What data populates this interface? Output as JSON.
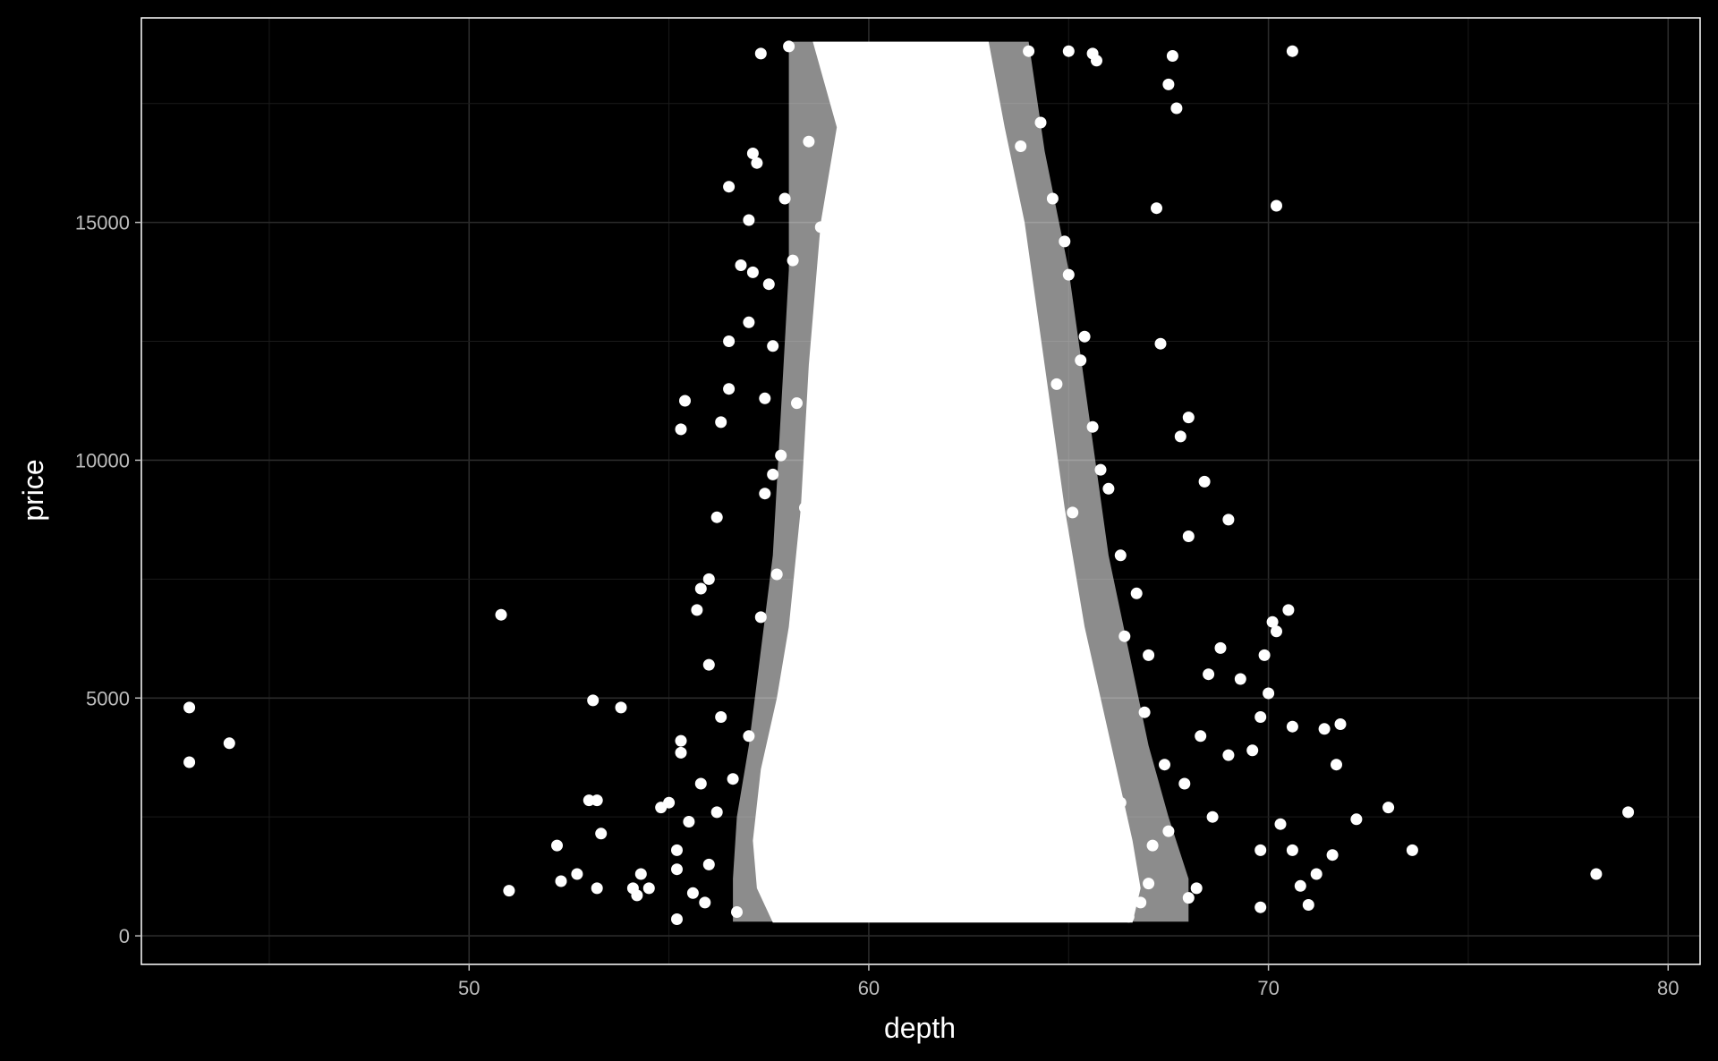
{
  "chart_data": {
    "type": "scatter",
    "title": "",
    "xlabel": "depth",
    "ylabel": "price",
    "xlim": [
      41.8,
      80.8
    ],
    "ylim": [
      -600,
      19300
    ],
    "x_ticks": [
      50,
      60,
      70,
      80
    ],
    "x_tick_labels": [
      "50",
      "60",
      "70",
      "80"
    ],
    "y_ticks": [
      0,
      5000,
      10000,
      15000
    ],
    "y_tick_labels": [
      "0",
      "5000",
      "10000",
      "15000"
    ],
    "grid": true,
    "legend": "none",
    "colors": {
      "background": "#000000",
      "points": "#ffffff",
      "grid": "#2b2b2b",
      "panel_border": "#ffffff",
      "tick_text": "#bdbdbd",
      "title_text": "#ffffff"
    },
    "points": [
      [
        43.0,
        4800
      ],
      [
        43.0,
        3650
      ],
      [
        44.0,
        4050
      ],
      [
        50.8,
        6750
      ],
      [
        51.0,
        950
      ],
      [
        52.2,
        1900
      ],
      [
        52.3,
        1150
      ],
      [
        52.7,
        1300
      ],
      [
        53.0,
        2850
      ],
      [
        53.2,
        2850
      ],
      [
        53.1,
        4950
      ],
      [
        53.2,
        1000
      ],
      [
        53.3,
        2150
      ],
      [
        53.8,
        4800
      ],
      [
        54.1,
        1000
      ],
      [
        54.2,
        850
      ],
      [
        54.3,
        1300
      ],
      [
        54.5,
        1000
      ],
      [
        54.8,
        2700
      ],
      [
        55.0,
        2800
      ],
      [
        55.2,
        1800
      ],
      [
        55.2,
        1400
      ],
      [
        55.2,
        350
      ],
      [
        55.3,
        4100
      ],
      [
        55.3,
        3850
      ],
      [
        55.3,
        10650
      ],
      [
        55.4,
        11250
      ],
      [
        55.5,
        2400
      ],
      [
        55.6,
        900
      ],
      [
        55.7,
        6850
      ],
      [
        55.8,
        7300
      ],
      [
        56.0,
        7500
      ],
      [
        56.0,
        5700
      ],
      [
        56.2,
        8800
      ],
      [
        56.3,
        10800
      ],
      [
        56.5,
        15750
      ],
      [
        56.5,
        12500
      ],
      [
        56.5,
        11500
      ],
      [
        56.8,
        14100
      ],
      [
        57.0,
        15050
      ],
      [
        57.1,
        13950
      ],
      [
        57.1,
        16450
      ],
      [
        57.2,
        16250
      ],
      [
        57.3,
        18550
      ],
      [
        57.0,
        12900
      ],
      [
        57.4,
        11300
      ],
      [
        57.4,
        9300
      ],
      [
        57.5,
        13700
      ],
      [
        57.6,
        9700
      ],
      [
        57.8,
        10100
      ],
      [
        58.0,
        18700
      ],
      [
        58.1,
        14200
      ],
      [
        64.0,
        18600
      ],
      [
        65.0,
        18600
      ],
      [
        65.6,
        18550
      ],
      [
        65.7,
        18400
      ],
      [
        67.2,
        15300
      ],
      [
        67.3,
        12450
      ],
      [
        67.5,
        17900
      ],
      [
        67.6,
        18500
      ],
      [
        67.7,
        17400
      ],
      [
        67.8,
        10500
      ],
      [
        68.0,
        10900
      ],
      [
        68.0,
        8400
      ],
      [
        68.4,
        9550
      ],
      [
        68.5,
        5500
      ],
      [
        68.6,
        2500
      ],
      [
        68.8,
        6050
      ],
      [
        69.0,
        3800
      ],
      [
        69.0,
        8750
      ],
      [
        69.3,
        5400
      ],
      [
        69.6,
        3900
      ],
      [
        69.8,
        1800
      ],
      [
        69.8,
        4600
      ],
      [
        69.8,
        600
      ],
      [
        69.9,
        5900
      ],
      [
        70.0,
        5100
      ],
      [
        70.1,
        6600
      ],
      [
        70.2,
        6400
      ],
      [
        70.2,
        15350
      ],
      [
        70.3,
        2350
      ],
      [
        70.5,
        6850
      ],
      [
        70.6,
        4400
      ],
      [
        70.6,
        1800
      ],
      [
        70.6,
        18600
      ],
      [
        70.8,
        1050
      ],
      [
        71.0,
        650
      ],
      [
        71.2,
        1300
      ],
      [
        71.4,
        4350
      ],
      [
        71.6,
        1700
      ],
      [
        71.7,
        3600
      ],
      [
        71.8,
        4450
      ],
      [
        72.2,
        2450
      ],
      [
        73.0,
        2700
      ],
      [
        73.6,
        1800
      ],
      [
        78.2,
        1300
      ],
      [
        79.0,
        2600
      ],
      [
        68.0,
        800
      ],
      [
        68.2,
        1000
      ],
      [
        66.5,
        400
      ],
      [
        66.8,
        700
      ],
      [
        67.0,
        1100
      ],
      [
        66.0,
        1300
      ],
      [
        67.5,
        2200
      ],
      [
        67.9,
        3200
      ],
      [
        68.3,
        4200
      ],
      [
        67.0,
        5900
      ],
      [
        66.7,
        7200
      ],
      [
        66.3,
        8000
      ],
      [
        66.0,
        9400
      ],
      [
        65.6,
        10700
      ],
      [
        65.4,
        12600
      ],
      [
        65.0,
        13900
      ],
      [
        64.6,
        15500
      ],
      [
        64.3,
        17100
      ],
      [
        58.4,
        9000
      ],
      [
        58.2,
        11200
      ],
      [
        57.6,
        12400
      ],
      [
        57.7,
        7600
      ],
      [
        57.3,
        6700
      ],
      [
        57.0,
        4200
      ],
      [
        56.6,
        3300
      ],
      [
        56.2,
        2600
      ],
      [
        56.0,
        1500
      ],
      [
        55.9,
        700
      ],
      [
        56.7,
        500
      ],
      [
        57.5,
        1100
      ],
      [
        58.5,
        16700
      ],
      [
        59.0,
        18400
      ],
      [
        63.8,
        16600
      ],
      [
        64.9,
        14600
      ],
      [
        65.3,
        12100
      ],
      [
        65.8,
        9800
      ],
      [
        66.4,
        6300
      ],
      [
        66.9,
        4700
      ],
      [
        67.4,
        3600
      ],
      [
        67.1,
        1900
      ],
      [
        66.3,
        2800
      ],
      [
        55.8,
        3200
      ],
      [
        56.3,
        4600
      ],
      [
        57.9,
        15500
      ],
      [
        58.8,
        14900
      ],
      [
        63.9,
        13400
      ],
      [
        64.7,
        11600
      ],
      [
        65.1,
        8900
      ]
    ]
  }
}
